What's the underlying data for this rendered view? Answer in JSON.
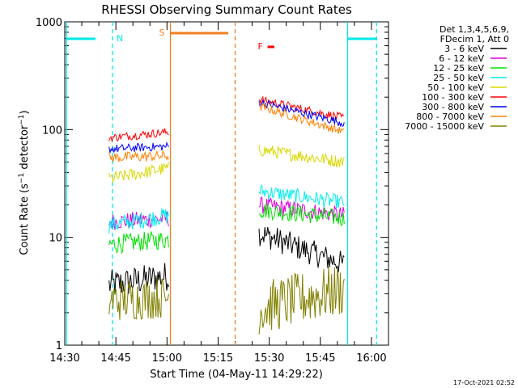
{
  "chart_data": {
    "type": "line",
    "title": "RHESSI Observing Summary Count Rates",
    "xlabel": "Start Time (04-May-11 14:29:22)",
    "ylabel": "Count Rate (s⁻¹ detector⁻¹)",
    "y_scale": "log",
    "ylim": [
      1,
      1000
    ],
    "xlim_minutes": [
      -30,
      65
    ],
    "x_ticks": [
      {
        "label": "14:30",
        "t": -30
      },
      {
        "label": "14:45",
        "t": -15
      },
      {
        "label": "15:00",
        "t": 0
      },
      {
        "label": "15:15",
        "t": 15
      },
      {
        "label": "15:30",
        "t": 30
      },
      {
        "label": "15:45",
        "t": 45
      },
      {
        "label": "16:00",
        "t": 60
      }
    ],
    "y_ticks": [
      {
        "label": "1",
        "v": 1
      },
      {
        "label": "10",
        "v": 10
      },
      {
        "label": "100",
        "v": 100
      },
      {
        "label": "1000",
        "v": 1000
      }
    ],
    "legend_header": [
      "Det 1,3,4,5,6,9,",
      "FDecim 1, Att 0"
    ],
    "legend_position": "right",
    "series": [
      {
        "name": "3 - 6 keV",
        "color": "#000000",
        "segments": [
          {
            "t0": -17,
            "t1": 0.5,
            "v0": 3.6,
            "v1": 4.4,
            "noise": 0.14
          },
          {
            "t0": 27,
            "t1": 52,
            "v0": 11,
            "v1": 5.6,
            "noise": 0.12
          }
        ]
      },
      {
        "name": "6 - 12 keV",
        "color": "#e000e0",
        "segments": [
          {
            "t0": -17,
            "t1": 0.5,
            "v0": 14,
            "v1": 15,
            "noise": 0.08
          },
          {
            "t0": 27,
            "t1": 52,
            "v0": 20,
            "v1": 16,
            "noise": 0.08
          }
        ]
      },
      {
        "name": "12 - 25 keV",
        "color": "#00e000",
        "segments": [
          {
            "t0": -17,
            "t1": 0.5,
            "v0": 8.6,
            "v1": 9.6,
            "noise": 0.09
          },
          {
            "t0": 27,
            "t1": 52,
            "v0": 18,
            "v1": 15,
            "noise": 0.08
          }
        ]
      },
      {
        "name": "25 - 50 keV",
        "color": "#00eeee",
        "segments": [
          {
            "t0": -17,
            "t1": 0.5,
            "v0": 13,
            "v1": 16,
            "noise": 0.08
          },
          {
            "t0": 27,
            "t1": 52,
            "v0": 27,
            "v1": 21,
            "noise": 0.07
          }
        ]
      },
      {
        "name": "50 - 100 keV",
        "color": "#d8d800",
        "segments": [
          {
            "t0": -17,
            "t1": 0.5,
            "v0": 35,
            "v1": 44,
            "noise": 0.06
          },
          {
            "t0": 27,
            "t1": 52,
            "v0": 65,
            "v1": 50,
            "noise": 0.06
          }
        ]
      },
      {
        "name": "100 - 300 keV",
        "color": "#ff0000",
        "segments": [
          {
            "t0": -17,
            "t1": 0.5,
            "v0": 84,
            "v1": 95,
            "noise": 0.04
          },
          {
            "t0": 27,
            "t1": 52,
            "v0": 190,
            "v1": 128,
            "noise": 0.04
          }
        ]
      },
      {
        "name": "300 - 800 keV",
        "color": "#0000ff",
        "segments": [
          {
            "t0": -17,
            "t1": 0.5,
            "v0": 66,
            "v1": 70,
            "noise": 0.04
          },
          {
            "t0": 27,
            "t1": 52,
            "v0": 180,
            "v1": 115,
            "noise": 0.04
          }
        ]
      },
      {
        "name": "800 - 7000 keV",
        "color": "#ff8000",
        "segments": [
          {
            "t0": -17,
            "t1": 0.5,
            "v0": 55,
            "v1": 57,
            "noise": 0.05
          },
          {
            "t0": 27,
            "t1": 52,
            "v0": 165,
            "v1": 95,
            "noise": 0.04
          }
        ]
      },
      {
        "name": "7000 - 15000 keV",
        "color": "#808000",
        "segments": [
          {
            "t0": -17,
            "t1": 0.5,
            "v0": 2.6,
            "v1": 2.8,
            "noise": 0.2
          },
          {
            "t0": 27,
            "t1": 52,
            "v0": 2.2,
            "v1": 3.3,
            "noise": 0.25
          }
        ]
      }
    ],
    "markers": {
      "night_intervals": [
        {
          "t0": -29.5,
          "t1": -21
        },
        {
          "t0": 53,
          "t1": 61.5
        }
      ],
      "night_label": "N",
      "night_edges_dashed": [
        -16,
        61.5
      ],
      "night_edges_solid": [
        -29.5,
        53
      ],
      "saa_interval": {
        "t0": 1,
        "t1": 20
      },
      "saa_label": "S",
      "flare_label": "F",
      "flare_bar": {
        "t0": 29.5,
        "t1": 31.5
      },
      "marker_colors": {
        "night": "#00e8e8",
        "saa": "#f08020",
        "flare": "#ff0000"
      }
    },
    "footer_timestamp": "17-Oct-2021 02:52"
  }
}
